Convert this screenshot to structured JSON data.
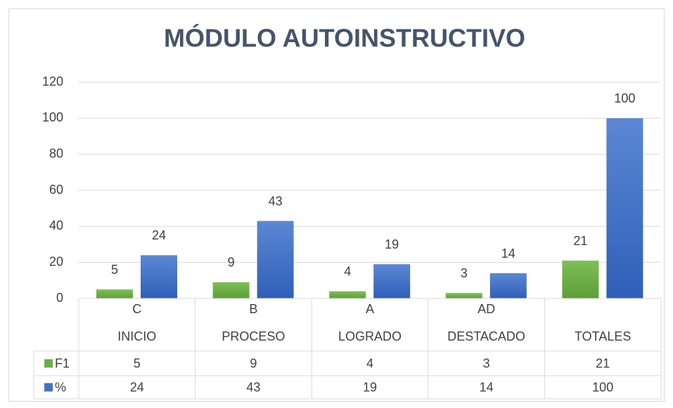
{
  "chart_data": {
    "type": "bar",
    "title": "MÓDULO AUTOINSTRUCTIVO",
    "categories": [
      "C",
      "B",
      "A",
      "AD",
      null
    ],
    "subcategories": [
      "INICIO",
      "PROCESO",
      "LOGRADO",
      "DESTACADO",
      "TOTALES"
    ],
    "series": [
      {
        "name": "F1",
        "color": "#70ad47",
        "values": [
          5,
          9,
          4,
          3,
          21
        ]
      },
      {
        "name": "%",
        "color": "#4472c4",
        "values": [
          24,
          43,
          19,
          14,
          100
        ]
      }
    ],
    "ylim": [
      0,
      120
    ],
    "yticks": [
      0,
      20,
      40,
      60,
      80,
      100,
      120
    ],
    "grid": true,
    "data_table": true
  }
}
